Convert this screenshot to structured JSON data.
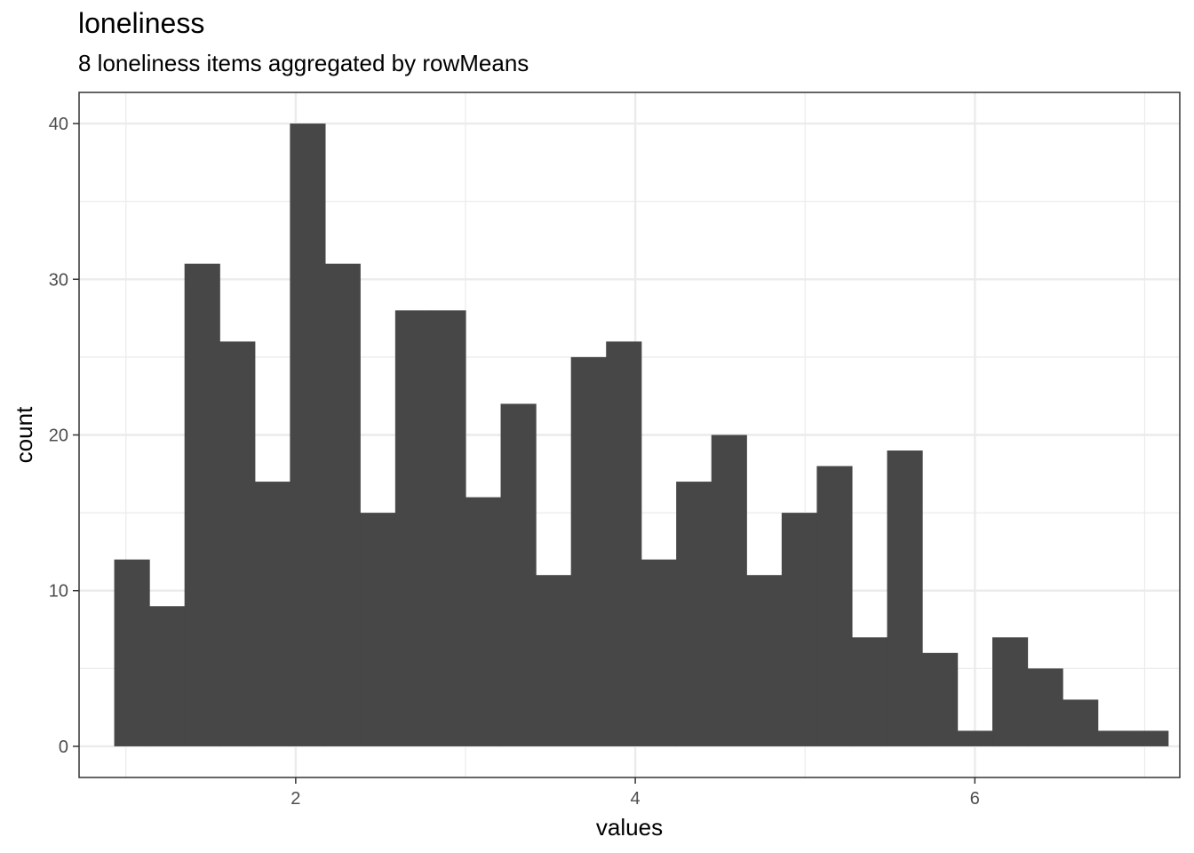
{
  "chart_data": {
    "type": "bar",
    "title": "loneliness",
    "subtitle": "8 loneliness items aggregated by rowMeans",
    "xlabel": "values",
    "ylabel": "count",
    "bin_width": 0.2069,
    "bins": [
      {
        "start": 0.931,
        "count": 12
      },
      {
        "start": 1.138,
        "count": 9
      },
      {
        "start": 1.345,
        "count": 31
      },
      {
        "start": 1.552,
        "count": 26
      },
      {
        "start": 1.759,
        "count": 17
      },
      {
        "start": 1.966,
        "count": 40
      },
      {
        "start": 2.172,
        "count": 31
      },
      {
        "start": 2.379,
        "count": 15
      },
      {
        "start": 2.586,
        "count": 28
      },
      {
        "start": 2.793,
        "count": 28
      },
      {
        "start": 3.0,
        "count": 16
      },
      {
        "start": 3.207,
        "count": 22
      },
      {
        "start": 3.414,
        "count": 11
      },
      {
        "start": 3.621,
        "count": 25
      },
      {
        "start": 3.828,
        "count": 26
      },
      {
        "start": 4.034,
        "count": 12
      },
      {
        "start": 4.241,
        "count": 17
      },
      {
        "start": 4.448,
        "count": 20
      },
      {
        "start": 4.655,
        "count": 11
      },
      {
        "start": 4.862,
        "count": 15
      },
      {
        "start": 5.069,
        "count": 18
      },
      {
        "start": 5.276,
        "count": 7
      },
      {
        "start": 5.483,
        "count": 19
      },
      {
        "start": 5.69,
        "count": 6
      },
      {
        "start": 5.897,
        "count": 1
      },
      {
        "start": 6.103,
        "count": 7
      },
      {
        "start": 6.31,
        "count": 5
      },
      {
        "start": 6.517,
        "count": 3
      },
      {
        "start": 6.724,
        "count": 1
      },
      {
        "start": 6.931,
        "count": 1
      }
    ],
    "xlim": [
      0.724,
      7.207
    ],
    "ylim": [
      -2,
      42
    ],
    "x_ticks": [
      2,
      4,
      6
    ],
    "x_tick_labels": [
      "2",
      "4",
      "6"
    ],
    "y_ticks": [
      0,
      10,
      20,
      30,
      40
    ],
    "y_tick_labels": [
      "0",
      "10",
      "20",
      "30",
      "40"
    ],
    "x_minor": [
      1,
      3,
      5,
      7
    ],
    "y_minor": [
      5,
      15,
      25,
      35
    ],
    "grid": true,
    "bar_color": "#474747",
    "grid_color": "#ebebeb",
    "panel_border_color": "#333333"
  }
}
